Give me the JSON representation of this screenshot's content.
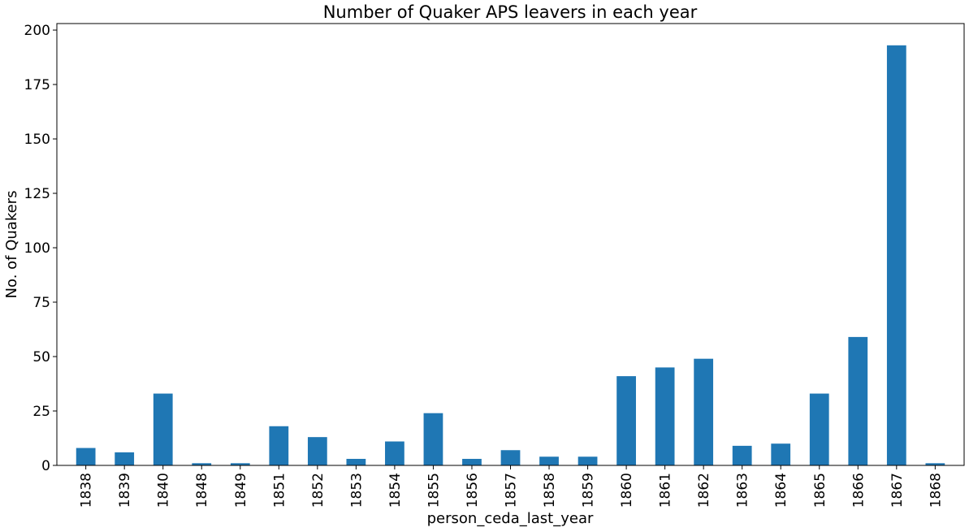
{
  "chart_data": {
    "type": "bar",
    "title": "Number of Quaker APS leavers in each year",
    "xlabel": "person_ceda_last_year",
    "ylabel": "No. of Quakers",
    "categories": [
      "1838",
      "1839",
      "1840",
      "1848",
      "1849",
      "1851",
      "1852",
      "1853",
      "1854",
      "1855",
      "1856",
      "1857",
      "1858",
      "1859",
      "1860",
      "1861",
      "1862",
      "1863",
      "1864",
      "1865",
      "1866",
      "1867",
      "1868"
    ],
    "values": [
      8,
      6,
      33,
      1,
      1,
      18,
      13,
      3,
      11,
      24,
      3,
      7,
      4,
      4,
      41,
      45,
      49,
      9,
      10,
      33,
      59,
      193,
      1
    ],
    "ylim": [
      0,
      203
    ],
    "yticks": [
      0,
      25,
      50,
      75,
      100,
      125,
      150,
      175,
      200
    ],
    "bar_color": "#1f77b4",
    "grid": false,
    "legend": false
  }
}
